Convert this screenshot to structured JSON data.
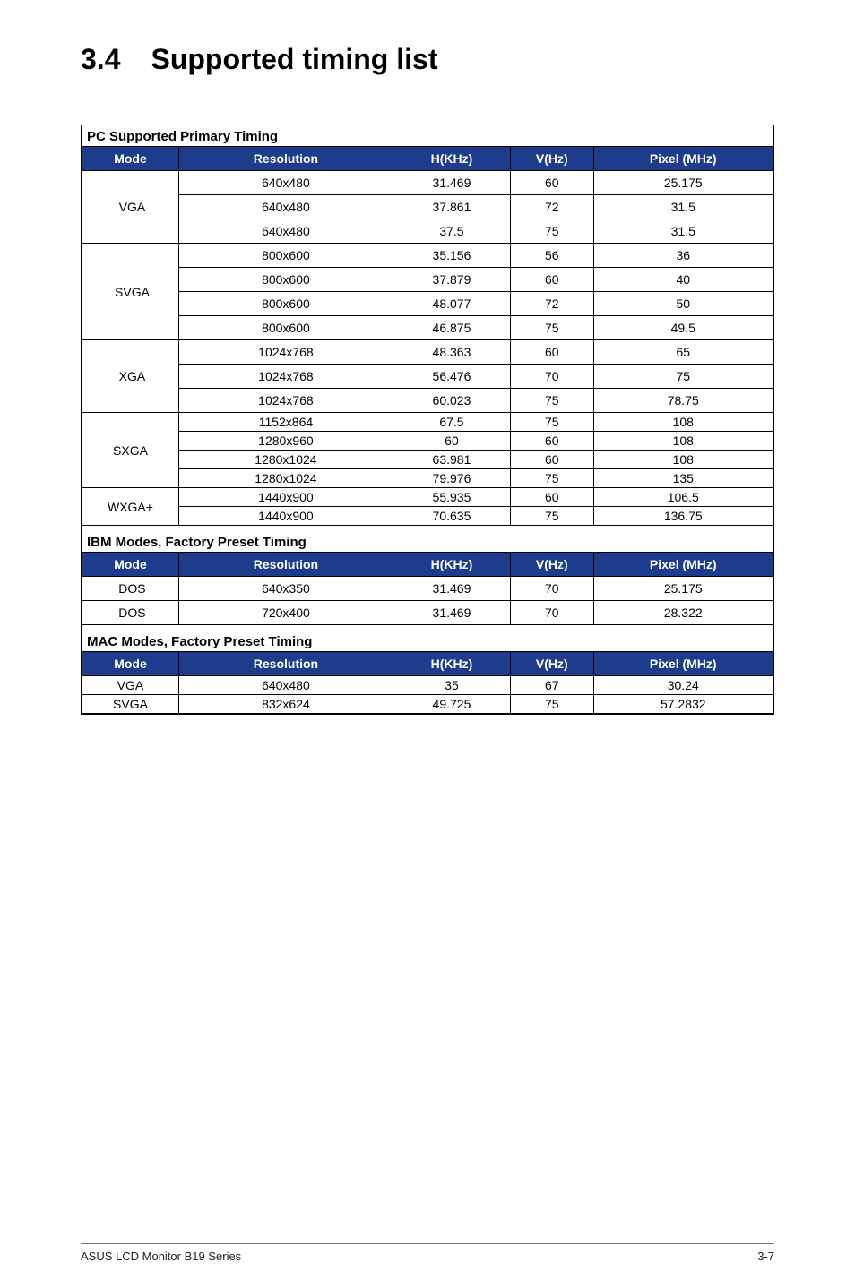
{
  "title": {
    "num": "3.4",
    "text": "Supported timing list"
  },
  "sections": {
    "pc": "PC Supported Primary Timing",
    "ibm": "IBM Modes, Factory Preset Timing",
    "mac": "MAC Modes, Factory Preset Timing"
  },
  "headers": {
    "mode": "Mode",
    "res": "Resolution",
    "h": "H(KHz)",
    "v": "V(Hz)",
    "p": "Pixel (MHz)"
  },
  "pc": {
    "rows": [
      {
        "mode": "VGA",
        "span": 3,
        "cells": [
          [
            "640x480",
            "31.469",
            "60",
            "25.175"
          ],
          [
            "640x480",
            "37.861",
            "72",
            "31.5"
          ],
          [
            "640x480",
            "37.5",
            "75",
            "31.5"
          ]
        ]
      },
      {
        "mode": "SVGA",
        "span": 4,
        "cells": [
          [
            "800x600",
            "35.156",
            "56",
            "36"
          ],
          [
            "800x600",
            "37.879",
            "60",
            "40"
          ],
          [
            "800x600",
            "48.077",
            "72",
            "50"
          ],
          [
            "800x600",
            "46.875",
            "75",
            "49.5"
          ]
        ]
      },
      {
        "mode": "XGA",
        "span": 3,
        "cells": [
          [
            "1024x768",
            "48.363",
            "60",
            "65"
          ],
          [
            "1024x768",
            "56.476",
            "70",
            "75"
          ],
          [
            "1024x768",
            "60.023",
            "75",
            "78.75"
          ]
        ]
      },
      {
        "mode": "SXGA",
        "span": 4,
        "compact": true,
        "cells": [
          [
            "1152x864",
            "67.5",
            "75",
            "108"
          ],
          [
            "1280x960",
            "60",
            "60",
            "108"
          ],
          [
            "1280x1024",
            "63.981",
            "60",
            "108"
          ],
          [
            "1280x1024",
            "79.976",
            "75",
            "135"
          ]
        ]
      },
      {
        "mode": "WXGA+",
        "span": 2,
        "compact": true,
        "cells": [
          [
            "1440x900",
            "55.935",
            "60",
            "106.5"
          ],
          [
            "1440x900",
            "70.635",
            "75",
            "136.75"
          ]
        ]
      }
    ]
  },
  "ibm": {
    "rows": [
      [
        "DOS",
        "640x350",
        "31.469",
        "70",
        "25.175"
      ],
      [
        "DOS",
        "720x400",
        "31.469",
        "70",
        "28.322"
      ]
    ]
  },
  "mac": {
    "rows": [
      [
        "VGA",
        "640x480",
        "35",
        "67",
        "30.24"
      ],
      [
        "SVGA",
        "832x624",
        "49.725",
        "75",
        "57.2832"
      ]
    ]
  },
  "footer": {
    "left": "ASUS LCD Monitor B19 Series",
    "right": "3-7"
  }
}
